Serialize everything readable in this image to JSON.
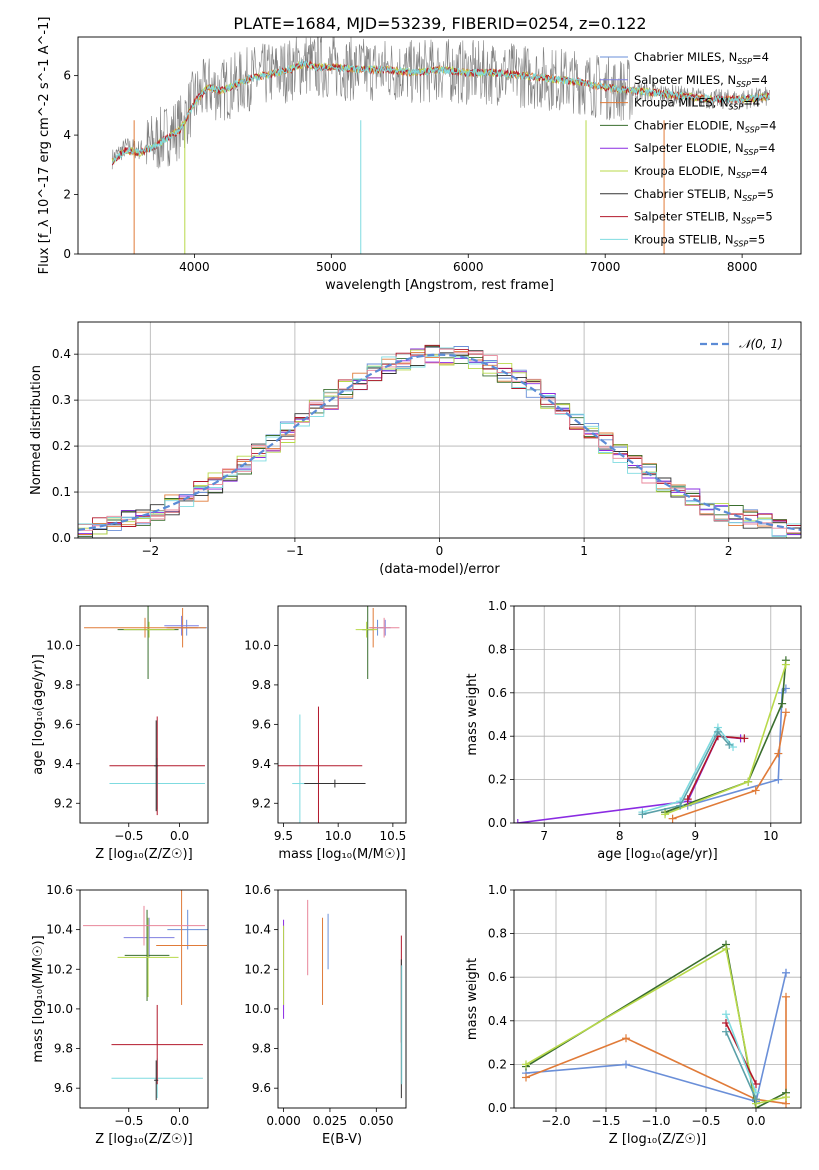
{
  "figure": {
    "title": "PLATE=1684, MJD=53239, FIBERID=0254, z=0.122"
  },
  "chart_data": [
    {
      "id": "spectrum",
      "type": "line",
      "xlabel": "wavelength [Angstrom, rest frame]",
      "ylabel": "Flux [f_λ 10^-17 erg cm^-2 s^-1 A^-1]",
      "xlim": [
        3150,
        8430
      ],
      "ylim": [
        0,
        7.3
      ],
      "xticks": [
        4000,
        5000,
        6000,
        7000,
        8000
      ],
      "yticks": [
        0,
        2,
        4,
        6
      ],
      "grid": false,
      "legend_position": "top-right",
      "legend": [
        {
          "label": "Chabrier MILES, N",
          "sub": "SSP",
          "tail": "=4",
          "color": "#6a8fd8"
        },
        {
          "label": "Salpeter MILES, N",
          "sub": "SSP",
          "tail": "=4",
          "color": "#7f7fe0"
        },
        {
          "label": "Kroupa MILES, N",
          "sub": "SSP",
          "tail": "=4",
          "color": "#e07b39"
        },
        {
          "label": "Chabrier ELODIE, N",
          "sub": "SSP",
          "tail": "=4",
          "color": "#3a6e2e"
        },
        {
          "label": "Salpeter ELODIE, N",
          "sub": "SSP",
          "tail": "=4",
          "color": "#8a2be2"
        },
        {
          "label": "Kroupa ELODIE, N",
          "sub": "SSP",
          "tail": "=4",
          "color": "#b8d94a"
        },
        {
          "label": "Chabrier STELIB, N",
          "sub": "SSP",
          "tail": "=5",
          "color": "#333333"
        },
        {
          "label": "Salpeter STELIB, N",
          "sub": "SSP",
          "tail": "=5",
          "color": "#b2182b"
        },
        {
          "label": "Kroupa STELIB, N",
          "sub": "SSP",
          "tail": "=5",
          "color": "#7fdbe0"
        }
      ],
      "series": [
        {
          "name": "data",
          "color": "#808080",
          "x": [
            3400,
            3500,
            3600,
            3700,
            3800,
            3900,
            4000,
            4100,
            4200,
            4300,
            4400,
            4500,
            4600,
            4700,
            4800,
            4900,
            5000,
            5200,
            5400,
            5600,
            5800,
            6000,
            6200,
            6400,
            6600,
            6800,
            7000,
            7200,
            7400,
            7600,
            7800,
            8000,
            8200
          ],
          "y": [
            3.2,
            3.6,
            3.5,
            3.7,
            4.0,
            4.3,
            5.2,
            5.6,
            5.5,
            5.7,
            5.9,
            6.0,
            6.1,
            6.2,
            6.4,
            6.3,
            6.3,
            6.2,
            6.2,
            6.1,
            6.2,
            6.1,
            6.1,
            6.0,
            5.9,
            5.8,
            5.6,
            5.5,
            5.4,
            5.3,
            5.2,
            5.2,
            5.3
          ]
        },
        {
          "name": "model",
          "color": "#7fdbe0",
          "x": [
            3400,
            3500,
            3600,
            3700,
            3800,
            3900,
            4000,
            4100,
            4200,
            4300,
            4400,
            4500,
            4600,
            4700,
            4800,
            4900,
            5000,
            5200,
            5400,
            5600,
            5800,
            6000,
            6200,
            6400,
            6600,
            6800,
            7000,
            7200,
            7400,
            7600,
            7800,
            8000,
            8200
          ],
          "y": [
            3.1,
            3.5,
            3.4,
            3.6,
            3.9,
            4.2,
            5.1,
            5.6,
            5.5,
            5.7,
            5.9,
            6.0,
            6.1,
            6.2,
            6.4,
            6.3,
            6.3,
            6.2,
            6.2,
            6.1,
            6.2,
            6.1,
            6.1,
            6.0,
            5.9,
            5.8,
            5.6,
            5.5,
            5.4,
            5.3,
            5.2,
            5.2,
            5.3
          ]
        }
      ]
    },
    {
      "id": "residuals",
      "type": "line",
      "xlabel": "(data-model)/error",
      "ylabel": "Normed distribution",
      "xlim": [
        -2.5,
        2.5
      ],
      "ylim": [
        0,
        0.47
      ],
      "xticks": [
        -2,
        -1,
        0,
        1,
        2
      ],
      "xtick_labels": [
        "−2",
        "−1",
        "0",
        "1",
        "2"
      ],
      "yticks": [
        0,
        0.1,
        0.2,
        0.3,
        0.4
      ],
      "ytick_labels": [
        "0.0",
        "0.1",
        "0.2",
        "0.3",
        "0.4"
      ],
      "grid": true,
      "legend_position": "top-right",
      "legend_label": "𝒩(0, 1)",
      "gaussian": {
        "mu": 0,
        "sigma": 1,
        "color": "#5b8bd6"
      },
      "hist_bin_width": 0.1
    },
    {
      "id": "age-vs-Z",
      "type": "scatter",
      "xlabel": "Z [log10(Z/Z⊙)]",
      "ylabel": "age [log10(age/yr)]",
      "xlim": [
        -0.98,
        0.28
      ],
      "ylim": [
        9.1,
        10.2
      ],
      "xticks": [
        -0.5,
        0.0
      ],
      "xtick_labels": [
        "−0.5",
        "0.0"
      ],
      "yticks": [
        9.2,
        9.4,
        9.6,
        9.8,
        10.0
      ],
      "ytick_labels": [
        "9.2",
        "9.4",
        "9.6",
        "9.8",
        "10.0"
      ],
      "points": [
        {
          "x": 0.07,
          "y": 10.09,
          "xerr": 0.2,
          "yerr": 0.04,
          "color": "#6a8fd8"
        },
        {
          "x": 0.03,
          "y": 10.09,
          "xerr": 0.15,
          "yerr": 0.1,
          "color": "#e07b39"
        },
        {
          "x": 0.02,
          "y": 10.1,
          "xerr": 0.17,
          "yerr": 0.05,
          "color": "#7f7fe0"
        },
        {
          "x": -0.31,
          "y": 10.08,
          "xerr": 0.3,
          "yerr": 0.25,
          "color": "#3a6e2e"
        },
        {
          "x": -0.3,
          "y": 10.08,
          "xerr": 0.25,
          "yerr": 0.04,
          "color": "#b8d94a"
        },
        {
          "x": -0.34,
          "y": 10.09,
          "xerr": 0.6,
          "yerr": 0.05,
          "color": "#e07b39"
        },
        {
          "x": -0.22,
          "y": 9.3,
          "xerr": 0.47,
          "yerr": 0.13,
          "color": "#7fdbe0"
        },
        {
          "x": -0.22,
          "y": 9.39,
          "xerr": 0.47,
          "yerr": 0.25,
          "color": "#b2182b"
        },
        {
          "x": -0.23,
          "y": 9.39,
          "xerr": 0.02,
          "yerr": 0.23,
          "color": "#333333"
        }
      ]
    },
    {
      "id": "age-vs-mass",
      "type": "scatter",
      "xlabel": "mass [log10(M/M⊙)]",
      "ylabel": "",
      "xlim": [
        9.45,
        10.62
      ],
      "ylim": [
        9.1,
        10.2
      ],
      "xticks": [
        9.5,
        10.0,
        10.5
      ],
      "xtick_labels": [
        "9.5",
        "10.0",
        "10.5"
      ],
      "yticks": [
        9.2,
        9.4,
        9.6,
        9.8,
        10.0
      ],
      "ytick_labels": [
        "9.2",
        "9.4",
        "9.6",
        "9.8",
        "10.0"
      ],
      "points": [
        {
          "x": 10.36,
          "y": 10.09,
          "xerr": 0.05,
          "yerr": 0.04,
          "color": "#6a8fd8"
        },
        {
          "x": 10.32,
          "y": 10.09,
          "xerr": 0.03,
          "yerr": 0.1,
          "color": "#e07b39"
        },
        {
          "x": 10.43,
          "y": 10.09,
          "xerr": 0.05,
          "yerr": 0.04,
          "color": "#7f7fe0"
        },
        {
          "x": 10.27,
          "y": 10.08,
          "xerr": 0.05,
          "yerr": 0.25,
          "color": "#3a6e2e"
        },
        {
          "x": 10.26,
          "y": 10.08,
          "xerr": 0.1,
          "yerr": 0.04,
          "color": "#b8d94a"
        },
        {
          "x": 10.42,
          "y": 10.09,
          "xerr": 0.14,
          "yerr": 0.05,
          "color": "#e8869a"
        },
        {
          "x": 9.65,
          "y": 9.3,
          "xerr": 0.07,
          "yerr": 0.35,
          "color": "#7fdbe0"
        },
        {
          "x": 9.82,
          "y": 9.39,
          "xerr": 0.4,
          "yerr": 0.3,
          "color": "#b2182b"
        },
        {
          "x": 9.97,
          "y": 9.3,
          "xerr": 0.28,
          "yerr": 0.02,
          "color": "#333333"
        }
      ]
    },
    {
      "id": "massweight-vs-age",
      "type": "line",
      "xlabel": "age [log10(age/yr)]",
      "ylabel": "mass weight",
      "xlim": [
        6.6,
        10.4
      ],
      "ylim": [
        0,
        1.0
      ],
      "xticks": [
        7,
        8,
        9,
        10
      ],
      "yticks": [
        0,
        0.2,
        0.4,
        0.6,
        0.8,
        1.0
      ],
      "ytick_labels": [
        "0.0",
        "0.2",
        "0.4",
        "0.6",
        "0.8",
        "1.0"
      ],
      "grid": true,
      "series": [
        {
          "color": "#6a8fd8",
          "x": [
            8.6,
            8.9,
            10.1,
            10.15,
            10.2
          ],
          "y": [
            0.05,
            0.08,
            0.2,
            0.6,
            0.62
          ]
        },
        {
          "color": "#e07b39",
          "x": [
            8.7,
            9.8,
            10.1,
            10.2
          ],
          "y": [
            0.02,
            0.15,
            0.32,
            0.51
          ]
        },
        {
          "color": "#3a6e2e",
          "x": [
            8.6,
            9.7,
            10.15,
            10.2
          ],
          "y": [
            0.05,
            0.19,
            0.55,
            0.75
          ]
        },
        {
          "color": "#b8d94a",
          "x": [
            8.6,
            9.7,
            10.2
          ],
          "y": [
            0.04,
            0.19,
            0.73
          ]
        },
        {
          "color": "#8a2be2",
          "x": [
            6.65,
            8.9,
            9.3,
            9.6
          ],
          "y": [
            0.0,
            0.1,
            0.4,
            0.39
          ]
        },
        {
          "color": "#b2182b",
          "x": [
            8.9,
            9.3,
            9.65
          ],
          "y": [
            0.11,
            0.4,
            0.39
          ]
        },
        {
          "color": "#7fdbe0",
          "x": [
            8.3,
            8.8,
            9.3,
            9.5
          ],
          "y": [
            0.05,
            0.1,
            0.44,
            0.35
          ]
        },
        {
          "color": "#5aa0a8",
          "x": [
            8.3,
            8.8,
            9.3,
            9.45
          ],
          "y": [
            0.04,
            0.08,
            0.42,
            0.36
          ]
        }
      ]
    },
    {
      "id": "mass-vs-Z",
      "type": "scatter",
      "xlabel": "Z [log10(Z/Z⊙)]",
      "ylabel": "mass [log10(M/M⊙)]",
      "xlim": [
        -0.98,
        0.28
      ],
      "ylim": [
        9.5,
        10.6
      ],
      "xticks": [
        -0.5,
        0.0
      ],
      "xtick_labels": [
        "−0.5",
        "0.0"
      ],
      "yticks": [
        9.6,
        9.8,
        10.0,
        10.2,
        10.4,
        10.6
      ],
      "ytick_labels": [
        "9.6",
        "9.8",
        "10.0",
        "10.2",
        "10.4",
        "10.6"
      ],
      "points": [
        {
          "x": 0.08,
          "y": 10.4,
          "xerr": 0.2,
          "yerr": 0.1,
          "color": "#6a8fd8"
        },
        {
          "x": 0.02,
          "y": 10.32,
          "xerr": 0.25,
          "yerr": 0.3,
          "color": "#e07b39"
        },
        {
          "x": -0.3,
          "y": 10.36,
          "xerr": 0.25,
          "yerr": 0.1,
          "color": "#7f7fe0"
        },
        {
          "x": -0.32,
          "y": 10.27,
          "xerr": 0.22,
          "yerr": 0.23,
          "color": "#3a6e2e"
        },
        {
          "x": -0.31,
          "y": 10.26,
          "xerr": 0.3,
          "yerr": 0.2,
          "color": "#b8d94a"
        },
        {
          "x": -0.35,
          "y": 10.42,
          "xerr": 0.6,
          "yerr": 0.1,
          "color": "#e8869a"
        },
        {
          "x": -0.22,
          "y": 9.65,
          "xerr": 0.45,
          "yerr": 0.1,
          "color": "#7fdbe0"
        },
        {
          "x": -0.22,
          "y": 9.82,
          "xerr": 0.45,
          "yerr": 0.2,
          "color": "#b2182b"
        },
        {
          "x": -0.23,
          "y": 9.64,
          "xerr": 0.02,
          "yerr": 0.1,
          "color": "#333333"
        }
      ]
    },
    {
      "id": "mass-vs-ebv",
      "type": "scatter",
      "xlabel": "E(B-V)",
      "ylabel": "",
      "xlim": [
        -0.003,
        0.066
      ],
      "ylim": [
        9.5,
        10.6
      ],
      "xticks": [
        0.0,
        0.025,
        0.05
      ],
      "xtick_labels": [
        "0.000",
        "0.025",
        "0.050"
      ],
      "yticks": [
        9.6,
        9.8,
        10.0,
        10.2,
        10.4,
        10.6
      ],
      "ytick_labels": [
        "9.6",
        "9.8",
        "10.0",
        "10.2",
        "10.4",
        "10.6"
      ],
      "points": [
        {
          "x": 0.0,
          "y": 10.2,
          "yerr": 0.25,
          "color": "#8a2be2"
        },
        {
          "x": 0.0,
          "y": 10.22,
          "yerr": 0.2,
          "color": "#b8d94a"
        },
        {
          "x": 0.013,
          "y": 10.36,
          "yerr": 0.19,
          "color": "#e8869a"
        },
        {
          "x": 0.021,
          "y": 10.24,
          "yerr": 0.22,
          "color": "#e07b39"
        },
        {
          "x": 0.024,
          "y": 10.34,
          "yerr": 0.14,
          "color": "#6a8fd8"
        },
        {
          "x": 0.0635,
          "y": 10.1,
          "yerr": 0.27,
          "color": "#b2182b"
        },
        {
          "x": 0.0635,
          "y": 9.9,
          "yerr": 0.35,
          "color": "#333333"
        },
        {
          "x": 0.0637,
          "y": 9.92,
          "yerr": 0.3,
          "color": "#7fdbe0"
        }
      ]
    },
    {
      "id": "massweight-vs-Z",
      "type": "line",
      "xlabel": "Z [log10(Z/Z⊙)]",
      "ylabel": "mass weight",
      "xlim": [
        -2.42,
        0.45
      ],
      "ylim": [
        0,
        1.0
      ],
      "xticks": [
        -2.0,
        -1.5,
        -1.0,
        -0.5,
        0.0
      ],
      "xtick_labels": [
        "−2.0",
        "−1.5",
        "−1.0",
        "−0.5",
        "0.0"
      ],
      "yticks": [
        0,
        0.2,
        0.4,
        0.6,
        0.8,
        1.0
      ],
      "ytick_labels": [
        "0.0",
        "0.2",
        "0.4",
        "0.6",
        "0.8",
        "1.0"
      ],
      "grid": true,
      "series": [
        {
          "color": "#6a8fd8",
          "x": [
            -2.3,
            -1.3,
            0.0,
            0.3,
            0.3
          ],
          "y": [
            0.16,
            0.2,
            0.03,
            0.62,
            0.62
          ]
        },
        {
          "color": "#e07b39",
          "x": [
            -2.3,
            -1.3,
            0.0,
            0.3,
            0.3
          ],
          "y": [
            0.14,
            0.32,
            0.04,
            0.02,
            0.51
          ]
        },
        {
          "color": "#3a6e2e",
          "x": [
            -2.3,
            -0.3,
            0.0,
            0.3
          ],
          "y": [
            0.19,
            0.75,
            0.0,
            0.07
          ]
        },
        {
          "color": "#b8d94a",
          "x": [
            -2.3,
            -0.3,
            0.0,
            0.3
          ],
          "y": [
            0.2,
            0.73,
            0.02,
            0.05
          ]
        },
        {
          "color": "#b2182b",
          "x": [
            -0.3,
            0.0
          ],
          "y": [
            0.39,
            0.11
          ]
        },
        {
          "color": "#7fdbe0",
          "x": [
            -0.3,
            0.0
          ],
          "y": [
            0.43,
            0.07
          ]
        },
        {
          "color": "#5aa0a8",
          "x": [
            -0.3,
            0.0
          ],
          "y": [
            0.35,
            0.04
          ]
        }
      ]
    }
  ]
}
